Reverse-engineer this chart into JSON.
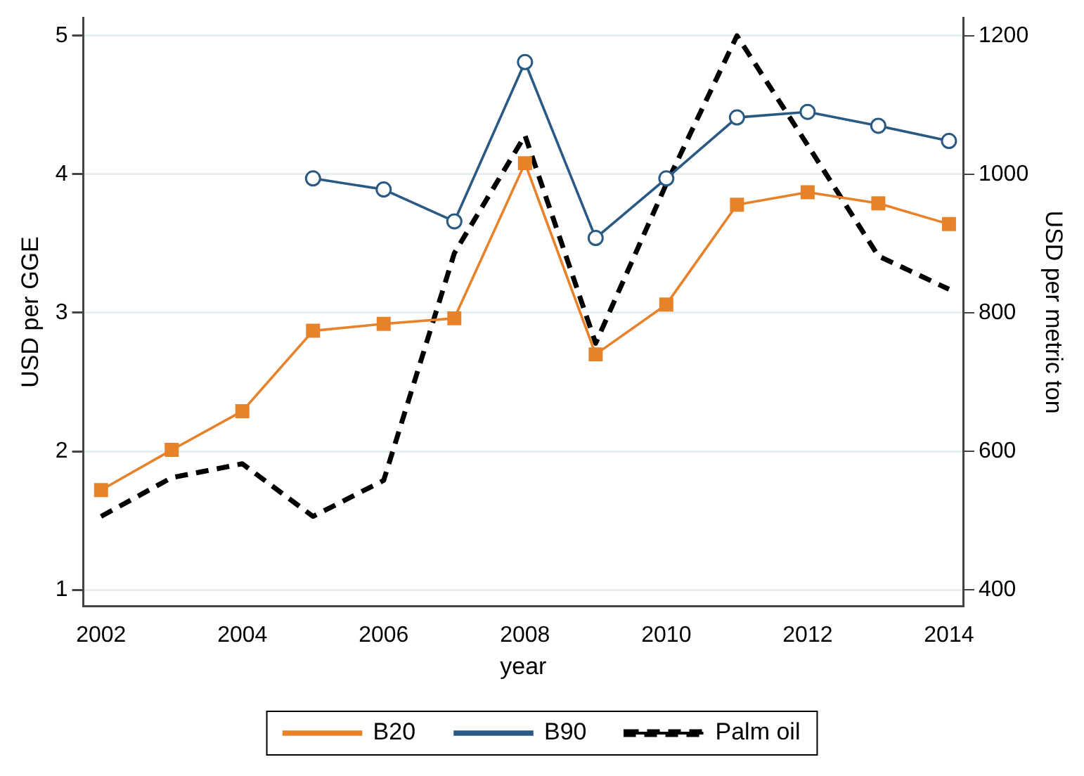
{
  "chart_data": {
    "type": "line",
    "xlabel": "year",
    "ylabel": "USD per GGE",
    "y2label": "USD per metric ton",
    "x": [
      2002,
      2003,
      2004,
      2005,
      2006,
      2007,
      2008,
      2009,
      2010,
      2011,
      2012,
      2013,
      2014
    ],
    "series": [
      {
        "name": "B20",
        "color": "#e8822a",
        "marker": "square",
        "line_style": "solid",
        "values": [
          1.72,
          2.01,
          2.29,
          2.87,
          2.92,
          2.96,
          4.08,
          2.7,
          3.06,
          3.78,
          3.87,
          3.79,
          3.64
        ]
      },
      {
        "name": "B90",
        "color": "#2a5a84",
        "marker": "circle",
        "line_style": "solid",
        "values": [
          null,
          null,
          null,
          3.97,
          3.89,
          3.66,
          4.81,
          3.54,
          3.97,
          4.41,
          4.45,
          4.35,
          4.24
        ]
      },
      {
        "name": "Palm oil",
        "color": "#000000",
        "marker": "none",
        "line_style": "dashed",
        "axis": "y2",
        "values": [
          506,
          562,
          582,
          506,
          558,
          886,
          1056,
          756,
          986,
          1200,
          1042,
          882,
          834
        ]
      }
    ],
    "xlim": [
      2001.75,
      2014.2
    ],
    "xticks": [
      2002,
      2004,
      2006,
      2008,
      2010,
      2012,
      2014
    ],
    "ylim": [
      0.88,
      5.13
    ],
    "yticks": [
      1,
      2,
      3,
      4,
      5
    ],
    "y2lim": [
      376,
      1226
    ],
    "y2ticks": [
      400,
      600,
      800,
      1000,
      1200
    ],
    "grid": "y",
    "legend": "bottom"
  }
}
